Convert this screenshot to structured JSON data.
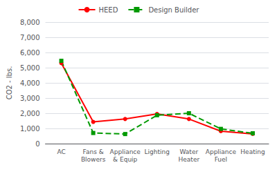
{
  "chart_data": {
    "type": "line",
    "categories": [
      "AC",
      "Fans &\nBlowers",
      "Appliance\n& Equip",
      "Lighting",
      "Water\nHeater",
      "Appliance\nFuel",
      "Heating"
    ],
    "series": [
      {
        "name": "HEED",
        "color": "#ff0000",
        "marker": "circle",
        "line_style": "solid",
        "values": [
          5300,
          1430,
          1620,
          1950,
          1620,
          820,
          640
        ]
      },
      {
        "name": "Design Builder",
        "color": "#009900",
        "marker": "square",
        "line_style": "dashed",
        "values": [
          5450,
          700,
          630,
          1870,
          2000,
          970,
          680
        ]
      }
    ],
    "ylabel": "CO2 - lbs.",
    "ylim": [
      0,
      8000
    ],
    "yticks": [
      0,
      {
        "value": 1000,
        "label": "1,000"
      },
      {
        "value": 2000,
        "label": "2,000"
      },
      {
        "value": 3000,
        "label": "3,000"
      },
      {
        "value": 4000,
        "label": "4,000"
      },
      {
        "value": 5000,
        "label": "5,000"
      },
      {
        "value": 6000,
        "label": "6,000"
      },
      {
        "value": 7000,
        "label": "7,000"
      },
      {
        "value": 8000,
        "label": "8,000"
      }
    ],
    "grid": true,
    "legend": "top"
  }
}
